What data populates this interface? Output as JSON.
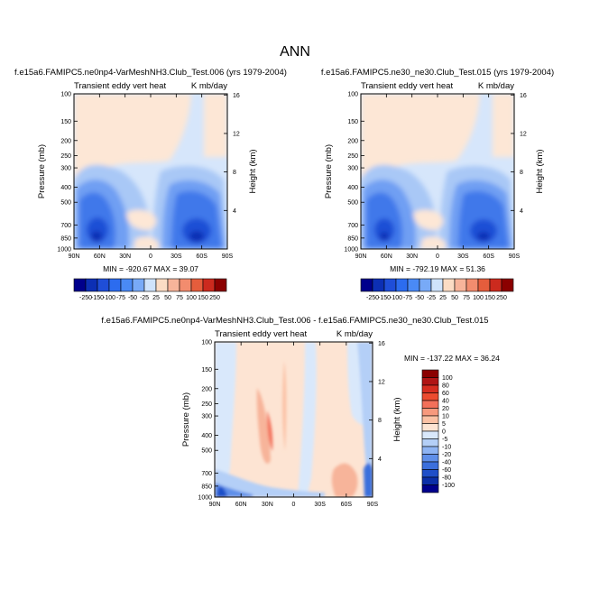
{
  "figure_title": "ANN",
  "chart_data": [
    {
      "type": "heatmap",
      "title": "f.e15a6.FAMIPC5.ne0np4-VarMeshNH3.Club_Test.006 (yrs 1979-2004)",
      "left_subtitle": "Transient eddy vert heat",
      "right_subtitle": "K mb/day",
      "ylabel": "Pressure (mb)",
      "y2label": "Height (km)",
      "x_ticks": [
        "90N",
        "60N",
        "30N",
        "0",
        "30S",
        "60S",
        "90S"
      ],
      "y_ticks": [
        100,
        150,
        200,
        250,
        300,
        400,
        500,
        700,
        850,
        1000
      ],
      "y2_ticks": [
        16,
        12,
        8,
        4
      ],
      "ylim": [
        100,
        1000
      ],
      "y_scale": "log",
      "stats": "MIN = -920.67   MAX = 39.07",
      "levels": [
        -250,
        -150,
        -100,
        -75,
        -50,
        -25,
        25,
        50,
        75,
        100,
        150,
        250
      ],
      "features": [
        {
          "lat": 65,
          "p": 820,
          "value": -920
        },
        {
          "lat": -48,
          "p": 800,
          "value": -800
        },
        {
          "lat": 65,
          "p": 500,
          "value": -150
        },
        {
          "lat": -48,
          "p": 450,
          "value": -150
        }
      ]
    },
    {
      "type": "heatmap",
      "title": "f.e15a6.FAMIPC5.ne30_ne30.Club_Test.015 (yrs 1979-2004)",
      "left_subtitle": "Transient eddy vert heat",
      "right_subtitle": "K mb/day",
      "ylabel": "Pressure (mb)",
      "y2label": "Height (km)",
      "x_ticks": [
        "90N",
        "60N",
        "30N",
        "0",
        "30S",
        "60S",
        "90S"
      ],
      "y_ticks": [
        100,
        150,
        200,
        250,
        300,
        400,
        500,
        700,
        850,
        1000
      ],
      "y2_ticks": [
        16,
        12,
        8,
        4
      ],
      "ylim": [
        100,
        1000
      ],
      "y_scale": "log",
      "stats": "MIN = -792.19   MAX = 51.36",
      "levels": [
        -250,
        -150,
        -100,
        -75,
        -50,
        -25,
        25,
        50,
        75,
        100,
        150,
        250
      ],
      "features": [
        {
          "lat": 65,
          "p": 820,
          "value": -790
        },
        {
          "lat": -48,
          "p": 800,
          "value": -700
        },
        {
          "lat": 65,
          "p": 500,
          "value": -150
        },
        {
          "lat": -48,
          "p": 450,
          "value": -150
        }
      ]
    },
    {
      "type": "heatmap",
      "title": "f.e15a6.FAMIPC5.ne0np4-VarMeshNH3.Club_Test.006 - f.e15a6.FAMIPC5.ne30_ne30.Club_Test.015",
      "left_subtitle": "Transient eddy vert heat",
      "right_subtitle": "K mb/day",
      "ylabel": "Pressure (mb)",
      "y2label": "Height (km)",
      "x_ticks": [
        "90N",
        "60N",
        "30N",
        "0",
        "30S",
        "60S",
        "90S"
      ],
      "y_ticks": [
        100,
        150,
        200,
        250,
        300,
        400,
        500,
        700,
        850,
        1000
      ],
      "y2_ticks": [
        16,
        12,
        8,
        4
      ],
      "ylim": [
        100,
        1000
      ],
      "y_scale": "log",
      "stats": "MIN = -137.22   MAX = 36.24",
      "levels": [
        -100,
        -80,
        -60,
        -40,
        -20,
        -10,
        -5,
        0,
        5,
        10,
        20,
        40,
        60,
        80,
        100
      ],
      "features": [
        {
          "lat": 32,
          "p": 350,
          "value": 20
        },
        {
          "lat": 88,
          "p": 900,
          "value": -137
        },
        {
          "lat": -85,
          "p": 750,
          "value": -60
        }
      ]
    }
  ],
  "colorbars": {
    "abs": {
      "labels": [
        "-250",
        "-150",
        "-100",
        "-75",
        "-50",
        "-25",
        "25",
        "50",
        "75",
        "100",
        "150",
        "250"
      ],
      "colors": [
        "#00008c",
        "#0c2fb4",
        "#1f4ed8",
        "#2c6cef",
        "#4a8af5",
        "#78aaf7",
        "#cfe3fb",
        "#fbdcc4",
        "#f7b49a",
        "#f28c6e",
        "#e55d3c",
        "#cc2a1e",
        "#8b0000"
      ]
    },
    "diff": {
      "labels": [
        "100",
        "80",
        "60",
        "40",
        "20",
        "10",
        "5",
        "0",
        "-5",
        "-10",
        "-20",
        "-40",
        "-60",
        "-80",
        "-100"
      ],
      "colors": [
        "#8b0000",
        "#b01515",
        "#d62d20",
        "#ec4b2f",
        "#f3705a",
        "#f7997d",
        "#fbc1a4",
        "#fde4d3",
        "#d9e8fb",
        "#b4cff7",
        "#8eb4f3",
        "#5f8fe9",
        "#3b6fdc",
        "#1f4fc8",
        "#0b2fa8",
        "#00008c"
      ]
    }
  }
}
